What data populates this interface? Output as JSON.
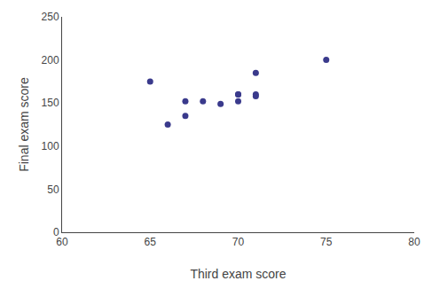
{
  "chart_data": {
    "type": "scatter",
    "x": [
      65,
      66,
      67,
      67,
      68,
      69,
      70,
      70,
      70,
      71,
      71,
      71,
      75
    ],
    "values": [
      175,
      125,
      135,
      152,
      152,
      149,
      160,
      152,
      160,
      185,
      160,
      158,
      200
    ],
    "xlabel": "Third exam score",
    "ylabel": "Final exam score",
    "xlim": [
      60,
      80
    ],
    "ylim": [
      0,
      250
    ],
    "xticks": [
      60,
      65,
      70,
      75,
      80
    ],
    "yticks": [
      0,
      50,
      100,
      150,
      200,
      250
    ],
    "color": "#3a3a8c",
    "grid": false
  }
}
